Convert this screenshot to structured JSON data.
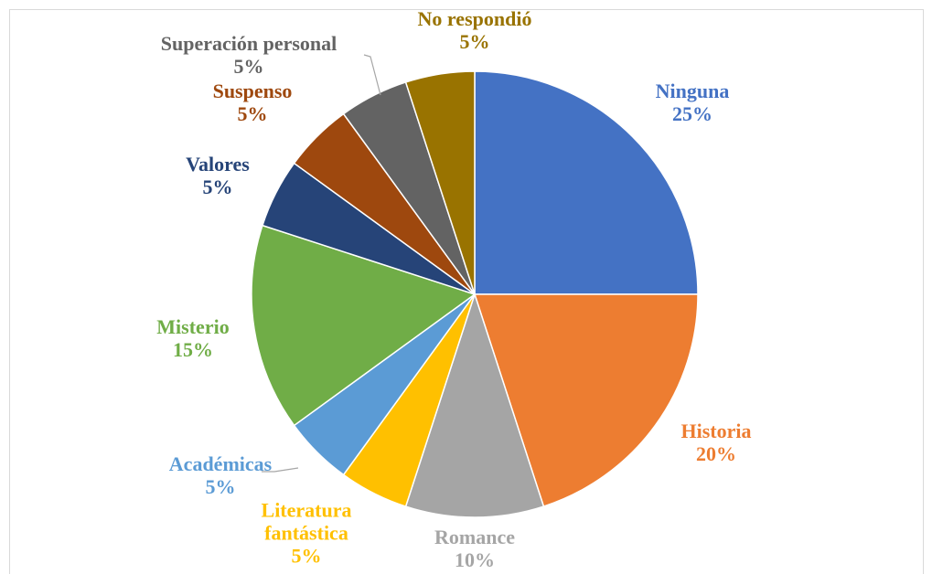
{
  "chart_data": {
    "type": "pie",
    "categories": [
      "Ninguna",
      "Historia",
      "Romance",
      "Literatura fantástica",
      "Académicas",
      "Misterio",
      "Valores",
      "Suspenso",
      "Superación personal",
      "No respondió"
    ],
    "values": [
      25,
      20,
      10,
      5,
      5,
      15,
      5,
      5,
      5,
      5
    ],
    "value_labels": [
      "25%",
      "20%",
      "10%",
      "5%",
      "5%",
      "15%",
      "5%",
      "5%",
      "5%",
      "5%"
    ],
    "colors": [
      "#4472c4",
      "#ed7d31",
      "#a5a5a5",
      "#ffc000",
      "#5b9bd5",
      "#70ad47",
      "#264478",
      "#9e480e",
      "#636363",
      "#997300"
    ]
  }
}
